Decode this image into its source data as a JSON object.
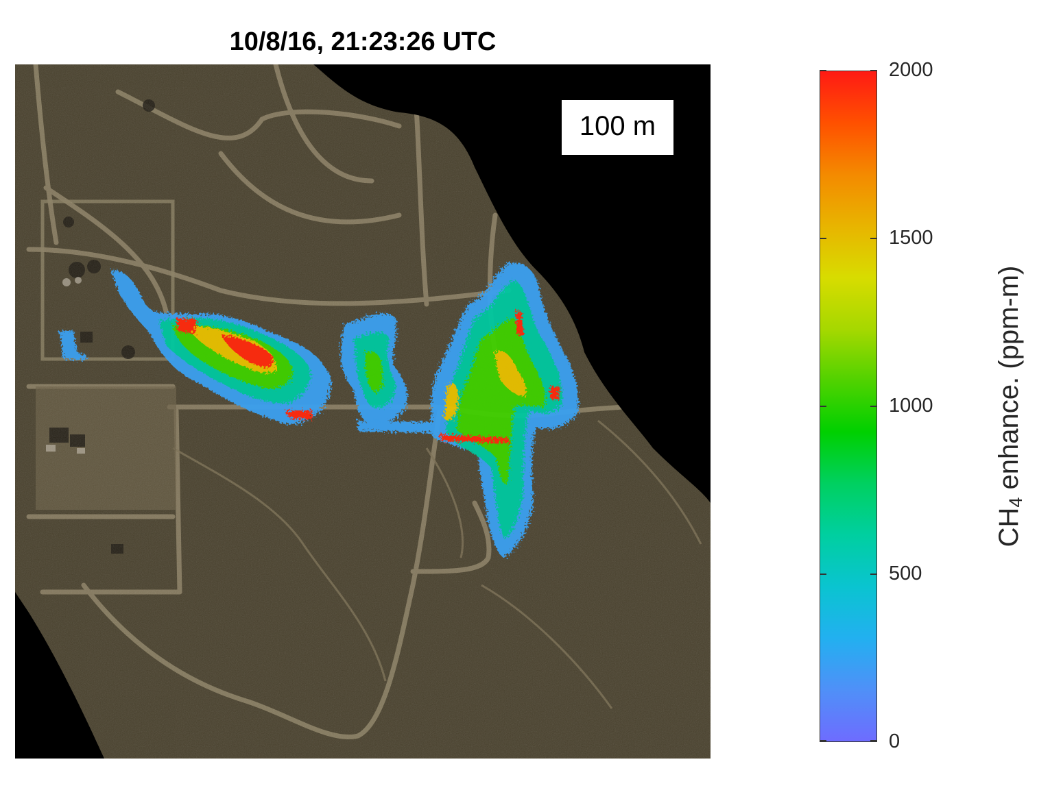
{
  "figure": {
    "title": "10/8/16, 21:23:26 UTC",
    "scale_bar_label": "100 m"
  },
  "colorbar": {
    "label_main": "CH",
    "label_subscript": "4",
    "label_rest": " enhance. (ppm-m)",
    "min": 0,
    "max": 2000,
    "ticks": [
      {
        "value": 0,
        "label": "0"
      },
      {
        "value": 500,
        "label": "500"
      },
      {
        "value": 1000,
        "label": "1000"
      },
      {
        "value": 1500,
        "label": "1500"
      },
      {
        "value": 2000,
        "label": "2000"
      }
    ],
    "colormap": [
      "#6e6cff",
      "#4f90f8",
      "#22b0f0",
      "#0ac4d0",
      "#00cfa0",
      "#00d060",
      "#00d000",
      "#50d200",
      "#a6d800",
      "#d8dc00",
      "#e8b400",
      "#f48a00",
      "#ff5000",
      "#ff1a14"
    ]
  },
  "colors": {
    "background_mask": "#000000",
    "terrain": "#48402c",
    "roads": "#8a7e62"
  }
}
